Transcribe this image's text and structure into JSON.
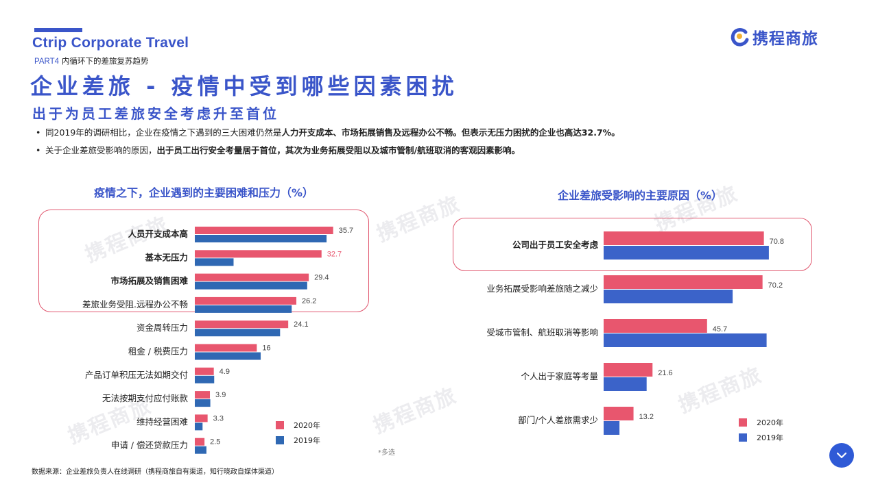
{
  "header": {
    "brand_en": "Ctrip Corporate Travel",
    "part_tag": "PART4",
    "part_text": "内循环下的差旅复苏趋势",
    "title": "企业差旅 - 疫情中受到哪些因素困扰",
    "subtitle": "出于为员工差旅安全考虑升至首位",
    "logo_text": "携程商旅"
  },
  "bullets": [
    {
      "plain": "同2019年的调研相比，企业在疫情之下遇到的三大困难仍然是",
      "bold": "人力开支成本、市场拓展销售及远程办公不畅。但表示无压力困扰的企业也高达32.7%。",
      "tail": ""
    },
    {
      "plain": "关于企业差旅受影响的原因，",
      "bold": "出于员工出行安全考量居于首位，其次为业务拓展受阻以及城市管制/航班取消的客观因素影响。",
      "tail": ""
    }
  ],
  "watermark_text": "携程商旅",
  "chart_data": [
    {
      "type": "bar",
      "orientation": "horizontal",
      "title": "疫情之下，企业遇到的主要困难和压力（%）",
      "categories": [
        "人员开支成本高",
        "基本无压力",
        "市场拓展及销售困难",
        "差旅业务受阻.远程办公不畅",
        "资金周转压力",
        "租金 / 税费压力",
        "产品订单积压无法如期交付",
        "无法按期支付应付账款",
        "维持经营困难",
        "申请 / 偿还贷款压力"
      ],
      "bold_categories": [
        0,
        1,
        2
      ],
      "series": [
        {
          "name": "2020年",
          "color": "#e8566e",
          "values": [
            35.7,
            32.7,
            29.4,
            26.2,
            24.1,
            16,
            4.9,
            3.9,
            3.3,
            2.5
          ]
        },
        {
          "name": "2019年",
          "color": "#2f68b3",
          "values": [
            34,
            10,
            29,
            25,
            22,
            17,
            5,
            4,
            2,
            3
          ]
        }
      ],
      "value_labels": [
        "35.7",
        "32.7",
        "29.4",
        "26.2",
        "24.1",
        "16",
        "4.9",
        "3.9",
        "3.3",
        "2.5"
      ],
      "highlight_label_index": 1,
      "highlight_label_color": "#e8566e",
      "xlim": [
        0,
        100
      ],
      "legend_position": "bottom-right"
    },
    {
      "type": "bar",
      "orientation": "horizontal",
      "title": "企业差旅受影响的主要原因（%）",
      "categories": [
        "公司出于员工安全考虑",
        "业务拓展受影响差旅随之减少",
        "受城市管制、航班取消等影响",
        "个人出于家庭等考量",
        "部门/个人差旅需求少"
      ],
      "bold_categories": [
        0
      ],
      "series": [
        {
          "name": "2020年",
          "color": "#e8566e",
          "values": [
            70.8,
            70.2,
            45.7,
            21.6,
            13.2
          ]
        },
        {
          "name": "2019年",
          "color": "#3b63c9",
          "values": [
            73,
            57,
            72,
            19,
            7
          ]
        }
      ],
      "value_labels": [
        "70.8",
        "70.2",
        "45.7",
        "21.6",
        "13.2"
      ],
      "xlim": [
        0,
        100
      ],
      "legend_position": "bottom-right"
    }
  ],
  "legend": {
    "y2020": "2020年",
    "y2019": "2019年"
  },
  "note": "*多选",
  "source": "数据来源：企业差旅负责人在线调研（携程商旅自有渠道，知行晓政自媒体渠道）",
  "colors": {
    "brand": "#3a55c9",
    "accent": "#e8566e",
    "fab": "#2f5ad6"
  },
  "fab_icon": "chevron-down-icon"
}
